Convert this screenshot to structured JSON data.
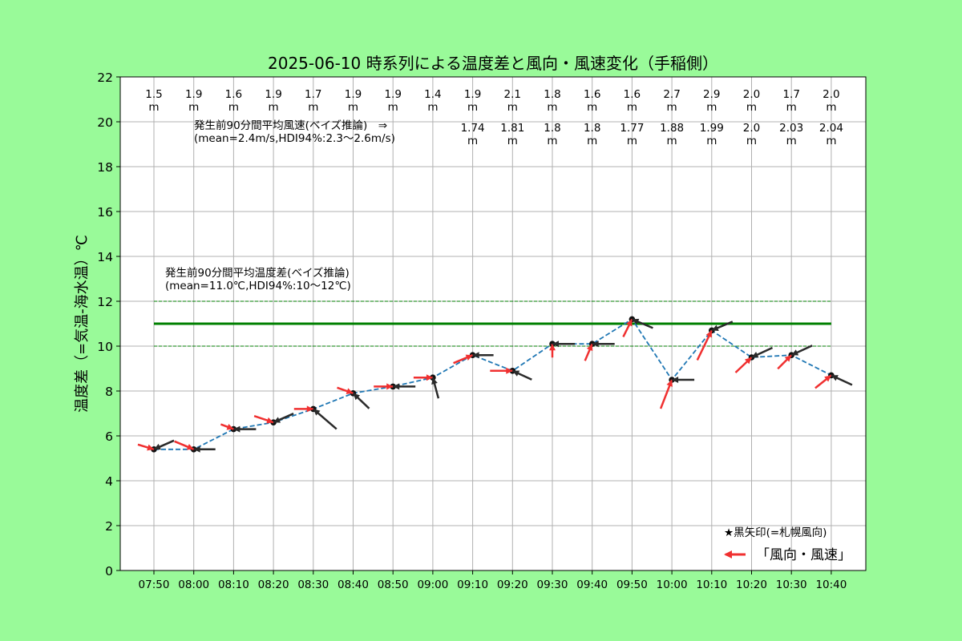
{
  "chart_data": {
    "type": "line",
    "title": "2025-06-10 時系列による温度差と風向・風速変化（手稲側）",
    "ylabel": "温度差（=気温-海水温）℃",
    "xlabel": "",
    "ylim": [
      0,
      22
    ],
    "yticks": [
      0,
      2,
      4,
      6,
      8,
      10,
      12,
      14,
      16,
      18,
      20,
      22
    ],
    "grid": true,
    "categories": [
      "07:50",
      "08:00",
      "08:10",
      "08:20",
      "08:30",
      "08:40",
      "08:50",
      "09:00",
      "09:10",
      "09:20",
      "09:30",
      "09:40",
      "09:50",
      "10:00",
      "10:10",
      "10:20",
      "10:30",
      "10:40"
    ],
    "series": [
      {
        "name": "",
        "values": [
          5.4,
          5.4,
          6.3,
          6.6,
          7.2,
          7.9,
          8.2,
          8.6,
          9.6,
          8.9,
          10.1,
          10.1,
          11.2,
          8.5,
          10.7,
          9.5,
          9.6,
          8.7
        ],
        "color": "#1f77b4",
        "style": "dashed"
      }
    ],
    "wind_speed_labels": [
      "1.5",
      "1.9",
      "1.6",
      "1.9",
      "1.7",
      "1.9",
      "1.9",
      "1.4",
      "1.9",
      "2.1",
      "1.8",
      "1.6",
      "1.6",
      "2.7",
      "2.9",
      "2.0",
      "1.7",
      "2.0"
    ],
    "sapporo_labels": [
      "",
      "",
      "",
      "",
      "",
      "",
      "",
      "",
      "1.74",
      "1.81",
      "1.8",
      "1.8",
      "1.77",
      "1.88",
      "1.99",
      "2.0",
      "2.03",
      "2.04"
    ],
    "unit_label": "m",
    "reference_lines": {
      "mean": 11.0,
      "low": 10,
      "high": 12,
      "mean_color": "#008000",
      "band_color": "#008000"
    },
    "annotations": {
      "wind": [
        "発生前90分間平均風速(ベイズ推論)　⇒",
        "(mean=2.4m/s,HDI94%:2.3〜2.6m/s)"
      ],
      "temp": [
        "発生前90分間平均温度差(ベイズ推論)",
        "(mean=11.0℃,HDI94%:10〜12℃)"
      ]
    },
    "arrows_red": [
      [
        -20,
        -6
      ],
      [
        -24,
        -10
      ],
      [
        -16,
        -6
      ],
      [
        -24,
        -8
      ],
      [
        -24,
        0
      ],
      [
        -20,
        -7
      ],
      [
        -24,
        0
      ],
      [
        -24,
        0
      ],
      [
        -24,
        10
      ],
      [
        -28,
        0
      ],
      [
        0,
        17
      ],
      [
        -9,
        21
      ],
      [
        -11,
        22
      ],
      [
        -14,
        36
      ],
      [
        -18,
        37
      ],
      [
        -20,
        19
      ],
      [
        -17,
        17
      ],
      [
        -20,
        16
      ]
    ],
    "arrows_black": [
      [
        25,
        -11
      ],
      [
        27,
        0
      ],
      [
        28,
        0
      ],
      [
        25,
        -11
      ],
      [
        29,
        25
      ],
      [
        20,
        19
      ],
      [
        28,
        0
      ],
      [
        7,
        26
      ],
      [
        26,
        0
      ],
      [
        24,
        11
      ],
      [
        28,
        0
      ],
      [
        28,
        0
      ],
      [
        26,
        11
      ],
      [
        28,
        0
      ],
      [
        26,
        -11
      ],
      [
        26,
        -12
      ],
      [
        26,
        -12
      ],
      [
        26,
        12
      ]
    ],
    "legend": {
      "black_arrow": "★黒矢印(=札幌風向)",
      "red_arrow": "「風向・風速」",
      "position": "bottom-right"
    },
    "colors": {
      "background": "#99fa99",
      "plot_bg": "#ffffff",
      "line": "#1f77b4",
      "red_arrow": "#f03030",
      "black_arrow": "#2a2a2a",
      "grid": "#b0b0b0"
    }
  }
}
